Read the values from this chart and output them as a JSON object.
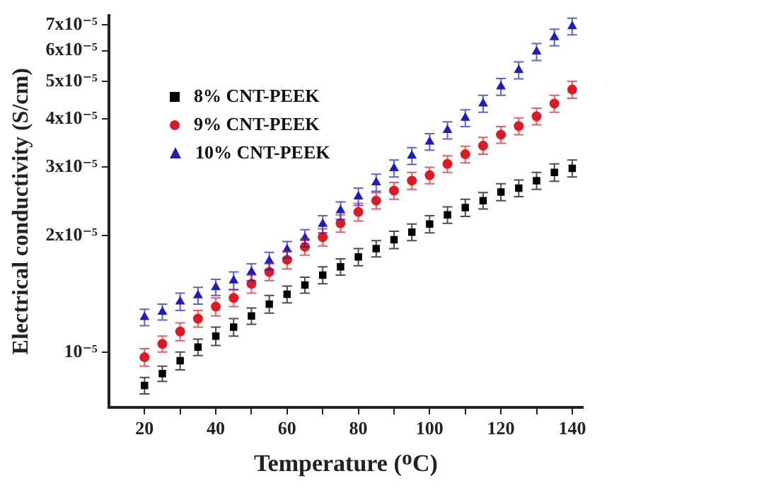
{
  "chart_data": {
    "type": "scatter",
    "xlabel": "Temperature (ᴼC)",
    "ylabel": "Electrical conductivity (S/cm)",
    "x": [
      20,
      25,
      30,
      35,
      40,
      45,
      50,
      55,
      60,
      65,
      70,
      75,
      80,
      85,
      90,
      95,
      100,
      105,
      110,
      115,
      120,
      125,
      130,
      135,
      140
    ],
    "series": [
      {
        "name": "8% CNT-PEEK",
        "color": "#000000",
        "marker": "square",
        "values": [
          8.2e-06,
          8.8e-06,
          9.5e-06,
          1.03e-05,
          1.1e-05,
          1.16e-05,
          1.24e-05,
          1.33e-05,
          1.41e-05,
          1.49e-05,
          1.58e-05,
          1.66e-05,
          1.76e-05,
          1.85e-05,
          1.95e-05,
          2.04e-05,
          2.14e-05,
          2.26e-05,
          2.36e-05,
          2.46e-05,
          2.59e-05,
          2.65e-05,
          2.77e-05,
          2.91e-05,
          2.98e-05
        ],
        "errors": [
          4e-07,
          4e-07,
          5e-07,
          5e-07,
          6e-07,
          6e-07,
          6e-07,
          7e-07,
          7e-07,
          7e-07,
          8e-07,
          8e-07,
          9e-07,
          9e-07,
          1e-06,
          1e-06,
          1.1e-06,
          1.1e-06,
          1.2e-06,
          1.2e-06,
          1.3e-06,
          1.3e-06,
          1.4e-06,
          1.5e-06,
          1.5e-06
        ]
      },
      {
        "name": "9% CNT-PEEK",
        "color": "#e01a22",
        "marker": "circle",
        "values": [
          9.7e-06,
          1.05e-05,
          1.13e-05,
          1.22e-05,
          1.31e-05,
          1.38e-05,
          1.5e-05,
          1.61e-05,
          1.73e-05,
          1.87e-05,
          1.98e-05,
          2.15e-05,
          2.3e-05,
          2.46e-05,
          2.61e-05,
          2.77e-05,
          2.86e-05,
          3.06e-05,
          3.24e-05,
          3.41e-05,
          3.64e-05,
          3.83e-05,
          4.06e-05,
          4.38e-05,
          4.76e-05
        ],
        "errors": [
          5e-07,
          5e-07,
          6e-07,
          6e-07,
          7e-07,
          7e-07,
          8e-07,
          8e-07,
          9e-07,
          9e-07,
          1e-06,
          1.1e-06,
          1.2e-06,
          1.2e-06,
          1.3e-06,
          1.4e-06,
          1.4e-06,
          1.5e-06,
          1.6e-06,
          1.7e-06,
          1.8e-06,
          1.9e-06,
          2e-06,
          2.2e-06,
          2.4e-06
        ]
      },
      {
        "name": "10% CNT-PEEK",
        "color": "#1c1cc8",
        "marker": "triangle",
        "values": [
          1.23e-05,
          1.27e-05,
          1.35e-05,
          1.4e-05,
          1.47e-05,
          1.53e-05,
          1.61e-05,
          1.72e-05,
          1.84e-05,
          1.97e-05,
          2.14e-05,
          2.32e-05,
          2.52e-05,
          2.74e-05,
          2.98e-05,
          3.21e-05,
          3.49e-05,
          3.74e-05,
          4.02e-05,
          4.38e-05,
          4.84e-05,
          5.34e-05,
          5.96e-05,
          6.49e-05,
          6.93e-05
        ],
        "errors": [
          6e-07,
          6e-07,
          7e-07,
          7e-07,
          7e-07,
          8e-07,
          8e-07,
          9e-07,
          9e-07,
          1e-06,
          1.1e-06,
          1.2e-06,
          1.3e-06,
          1.4e-06,
          1.5e-06,
          1.6e-06,
          1.7e-06,
          1.9e-06,
          2e-06,
          2.2e-06,
          2.4e-06,
          2.7e-06,
          3e-06,
          3.2e-06,
          3.4e-06
        ]
      }
    ],
    "log": "y",
    "grid": false,
    "legend": "top left",
    "xlim": [
      10,
      143
    ],
    "xticks": [
      20,
      {
        "value": 30,
        "label": null
      },
      40,
      {
        "value": 50,
        "label": null
      },
      60,
      {
        "value": 70,
        "label": null
      },
      80,
      {
        "value": 90,
        "label": null
      },
      100,
      {
        "value": 110,
        "label": null
      },
      120,
      {
        "value": 130,
        "label": null
      },
      140
    ],
    "ylim": [
      7.2e-06,
      7.4e-05
    ],
    "yticks": [
      {
        "value": 1e-05,
        "label": "10⁻⁵"
      },
      {
        "value": 2e-05,
        "label": "2x10⁻⁵"
      },
      {
        "value": 3e-05,
        "label": "3x10⁻⁵"
      },
      {
        "value": 4e-05,
        "label": "4x10⁻⁵"
      },
      {
        "value": 5e-05,
        "label": "5x10⁻⁵"
      },
      {
        "value": 6e-05,
        "label": "6x10⁻⁵"
      },
      {
        "value": 7e-05,
        "label": "7x10⁻⁵"
      }
    ]
  }
}
